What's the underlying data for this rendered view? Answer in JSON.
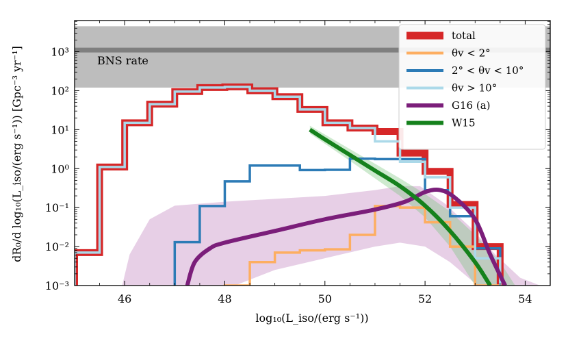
{
  "chart_data": {
    "type": "line",
    "xlabel": "log₁₀(L_iso/(erg s⁻¹))",
    "ylabel": "dR₀/d log₁₀(L_iso/(erg s⁻¹)) [Gpc⁻³ yr⁻¹]",
    "xlim": [
      45,
      54.5
    ],
    "ylim_log10": [
      -3,
      3.8
    ],
    "xticks": [
      {
        "value": 46,
        "label": "46"
      },
      {
        "value": 48,
        "label": "48"
      },
      {
        "value": 50,
        "label": "50"
      },
      {
        "value": 52,
        "label": "52"
      },
      {
        "value": 54,
        "label": "54"
      }
    ],
    "yticks": [
      {
        "exp": -3,
        "label": "10⁻³"
      },
      {
        "exp": -2,
        "label": "10⁻²"
      },
      {
        "exp": -1,
        "label": "10⁻¹"
      },
      {
        "exp": 0,
        "label": "10⁰"
      },
      {
        "exp": 1,
        "label": "10¹"
      },
      {
        "exp": 2,
        "label": "10²"
      },
      {
        "exp": 3,
        "label": "10³"
      }
    ],
    "bns_band": {
      "label": "BNS rate",
      "low": 120,
      "high": 4500,
      "central": 1100
    },
    "edges": [
      45,
      45.5,
      46,
      46.5,
      47,
      47.5,
      48,
      48.5,
      49,
      49.5,
      50,
      50.5,
      51,
      51.5,
      52,
      52.5,
      53,
      53.5
    ],
    "series": [
      {
        "name": "total",
        "legend": "total",
        "color": "#d62728",
        "width": 10,
        "values": [
          0.007,
          1.1,
          15,
          45,
          95,
          120,
          125,
          100,
          70,
          33,
          15,
          11,
          9,
          2.5,
          0.85,
          0.12,
          0.01
        ]
      },
      {
        "name": "theta_lt_2",
        "legend": "θv < 2°",
        "color": "#fdae61",
        "width": 3.5,
        "values": [
          null,
          null,
          null,
          null,
          null,
          null,
          0.001,
          0.004,
          0.007,
          0.008,
          0.0085,
          0.02,
          0.11,
          0.1,
          0.042,
          0.01,
          0.001
        ]
      },
      {
        "name": "theta_2_10",
        "legend": "2° < θv < 10°",
        "color": "#2c7bb6",
        "width": 3.5,
        "values": [
          null,
          null,
          null,
          0.0009,
          0.013,
          0.11,
          0.47,
          1.2,
          1.2,
          0.92,
          0.93,
          1.8,
          1.75,
          1.75,
          0.28,
          0.06,
          0.009
        ]
      },
      {
        "name": "theta_gt_10",
        "legend": "θv > 10°",
        "color": "#abd9e9",
        "width": 3.5,
        "values": [
          0.007,
          1.1,
          15,
          45,
          95,
          120,
          125,
          100,
          70,
          33,
          15,
          11,
          5,
          1.5,
          0.6,
          0.1,
          0.005
        ]
      }
    ],
    "curves": [
      {
        "name": "G16 (a)",
        "legend": "G16 (a)",
        "color": "#7b1e7a",
        "width": 6,
        "points": [
          [
            47.25,
            -3
          ],
          [
            47.4,
            -2.4
          ],
          [
            47.7,
            -2.05
          ],
          [
            48,
            -1.9
          ],
          [
            49,
            -1.6
          ],
          [
            50,
            -1.3
          ],
          [
            51,
            -1.05
          ],
          [
            51.6,
            -0.85
          ],
          [
            52,
            -0.6
          ],
          [
            52.3,
            -0.55
          ],
          [
            52.6,
            -0.75
          ],
          [
            53,
            -1.3
          ],
          [
            53.3,
            -2.2
          ],
          [
            53.6,
            -3
          ]
        ],
        "band_upper": [
          [
            45.95,
            -3
          ],
          [
            46.1,
            -2.2
          ],
          [
            46.5,
            -1.3
          ],
          [
            47,
            -0.95
          ],
          [
            48,
            -0.85
          ],
          [
            50,
            -0.7
          ],
          [
            51,
            -0.55
          ],
          [
            51.5,
            -0.45
          ],
          [
            51.9,
            -0.45
          ],
          [
            52.4,
            -0.9
          ],
          [
            52.9,
            -1.5
          ],
          [
            53.4,
            -2.2
          ],
          [
            53.9,
            -2.8
          ],
          [
            54.3,
            -3
          ]
        ],
        "band_lower": [
          [
            48.2,
            -3
          ],
          [
            49,
            -2.6
          ],
          [
            50,
            -2.3
          ],
          [
            51,
            -2.0
          ],
          [
            51.5,
            -1.9
          ],
          [
            52,
            -2.0
          ],
          [
            52.5,
            -2.4
          ],
          [
            53.05,
            -3
          ]
        ]
      },
      {
        "name": "W15",
        "legend": "W15",
        "color": "#15811c",
        "width": 6,
        "points": [
          [
            49.7,
            1.0
          ],
          [
            50,
            0.75
          ],
          [
            50.5,
            0.35
          ],
          [
            51,
            -0.05
          ],
          [
            51.5,
            -0.45
          ],
          [
            52,
            -0.95
          ],
          [
            52.5,
            -1.6
          ],
          [
            53,
            -2.4
          ],
          [
            53.3,
            -3
          ]
        ],
        "band_upper": [
          [
            49.7,
            1.1
          ],
          [
            50.5,
            0.5
          ],
          [
            51.5,
            -0.25
          ],
          [
            52,
            -0.65
          ],
          [
            52.5,
            -1.1
          ],
          [
            53,
            -1.7
          ],
          [
            53.5,
            -2.4
          ],
          [
            53.8,
            -3
          ]
        ],
        "band_lower": [
          [
            49.7,
            0.9
          ],
          [
            50.5,
            0.2
          ],
          [
            51.5,
            -0.7
          ],
          [
            52,
            -1.25
          ],
          [
            52.5,
            -2.0
          ],
          [
            52.8,
            -2.6
          ],
          [
            53.0,
            -3
          ]
        ]
      }
    ],
    "legend": {
      "position": "top-right"
    }
  }
}
